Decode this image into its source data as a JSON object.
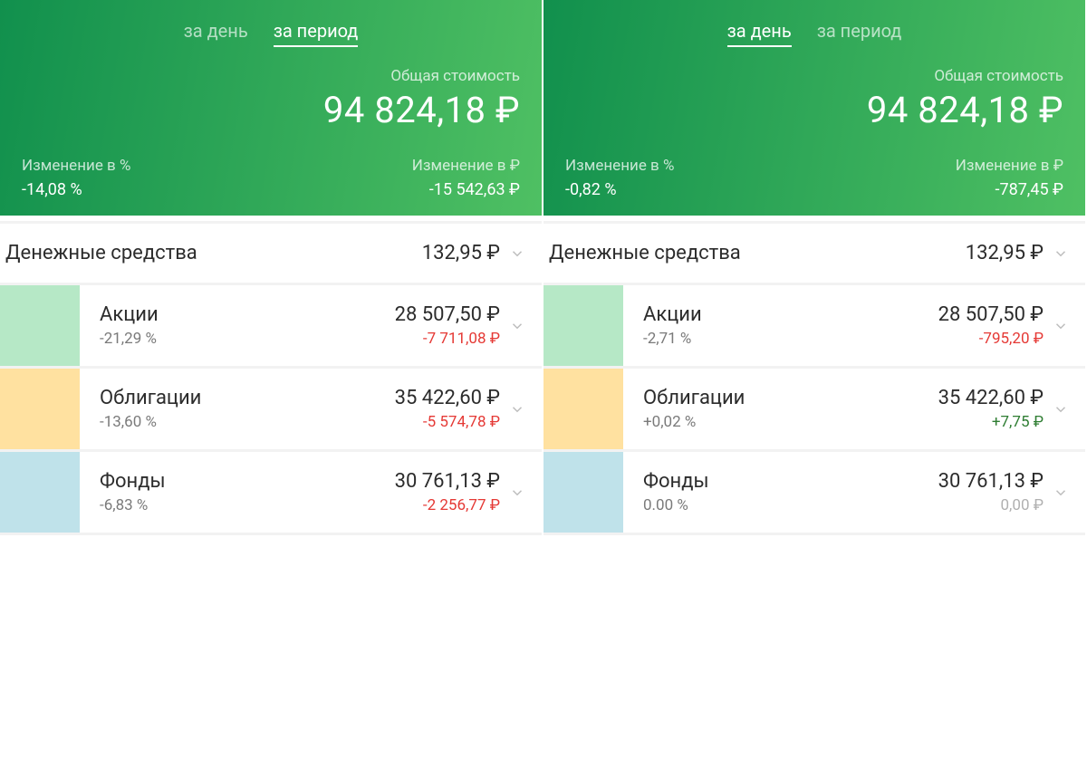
{
  "colors": {
    "header_gradient_from": "#11904d",
    "header_gradient_to": "#4fc063",
    "negative": "#e53935",
    "positive": "#2e7d32",
    "zero": "#b0b0b0",
    "bar_green": "#b6e8c6",
    "bar_yellow": "#ffe1a0",
    "bar_blue": "#bfe2ea"
  },
  "labels": {
    "tab_day": "за день",
    "tab_period": "за период",
    "total_label": "Общая стоимость",
    "change_pct_label": "Изменение в  %",
    "change_rub_label": "Изменение в ₽"
  },
  "panels": [
    {
      "active_tab": "period",
      "total_value": "94 824,18 ₽",
      "change_pct": "-14,08  %",
      "change_rub": "-15 542,63 ₽",
      "rows": [
        {
          "type": "simple",
          "title": "Денежные средства",
          "value": "132,95 ₽"
        },
        {
          "type": "asset",
          "bar_color": "#b6e8c6",
          "title": "Акции",
          "pct": "-21,29  %",
          "value": "28 507,50 ₽",
          "change": "-7 711,08 ₽",
          "change_class": "neg"
        },
        {
          "type": "asset",
          "bar_color": "#ffe1a0",
          "title": "Облигации",
          "pct": "-13,60  %",
          "value": "35 422,60 ₽",
          "change": "-5 574,78 ₽",
          "change_class": "neg"
        },
        {
          "type": "asset",
          "bar_color": "#bfe2ea",
          "title": "Фонды",
          "pct": "-6,83  %",
          "value": "30 761,13 ₽",
          "change": "-2 256,77 ₽",
          "change_class": "neg"
        }
      ]
    },
    {
      "active_tab": "day",
      "total_value": "94 824,18 ₽",
      "change_pct": "-0,82  %",
      "change_rub": "-787,45 ₽",
      "rows": [
        {
          "type": "simple",
          "title": "Денежные средства",
          "value": "132,95 ₽"
        },
        {
          "type": "asset",
          "bar_color": "#b6e8c6",
          "title": "Акции",
          "pct": "-2,71  %",
          "value": "28 507,50 ₽",
          "change": "-795,20 ₽",
          "change_class": "neg"
        },
        {
          "type": "asset",
          "bar_color": "#ffe1a0",
          "title": "Облигации",
          "pct": "+0,02  %",
          "value": "35 422,60 ₽",
          "change": "+7,75 ₽",
          "change_class": "pos"
        },
        {
          "type": "asset",
          "bar_color": "#bfe2ea",
          "title": "Фонды",
          "pct": "0.00  %",
          "value": "30 761,13 ₽",
          "change": "0,00 ₽",
          "change_class": "zero"
        }
      ]
    }
  ]
}
